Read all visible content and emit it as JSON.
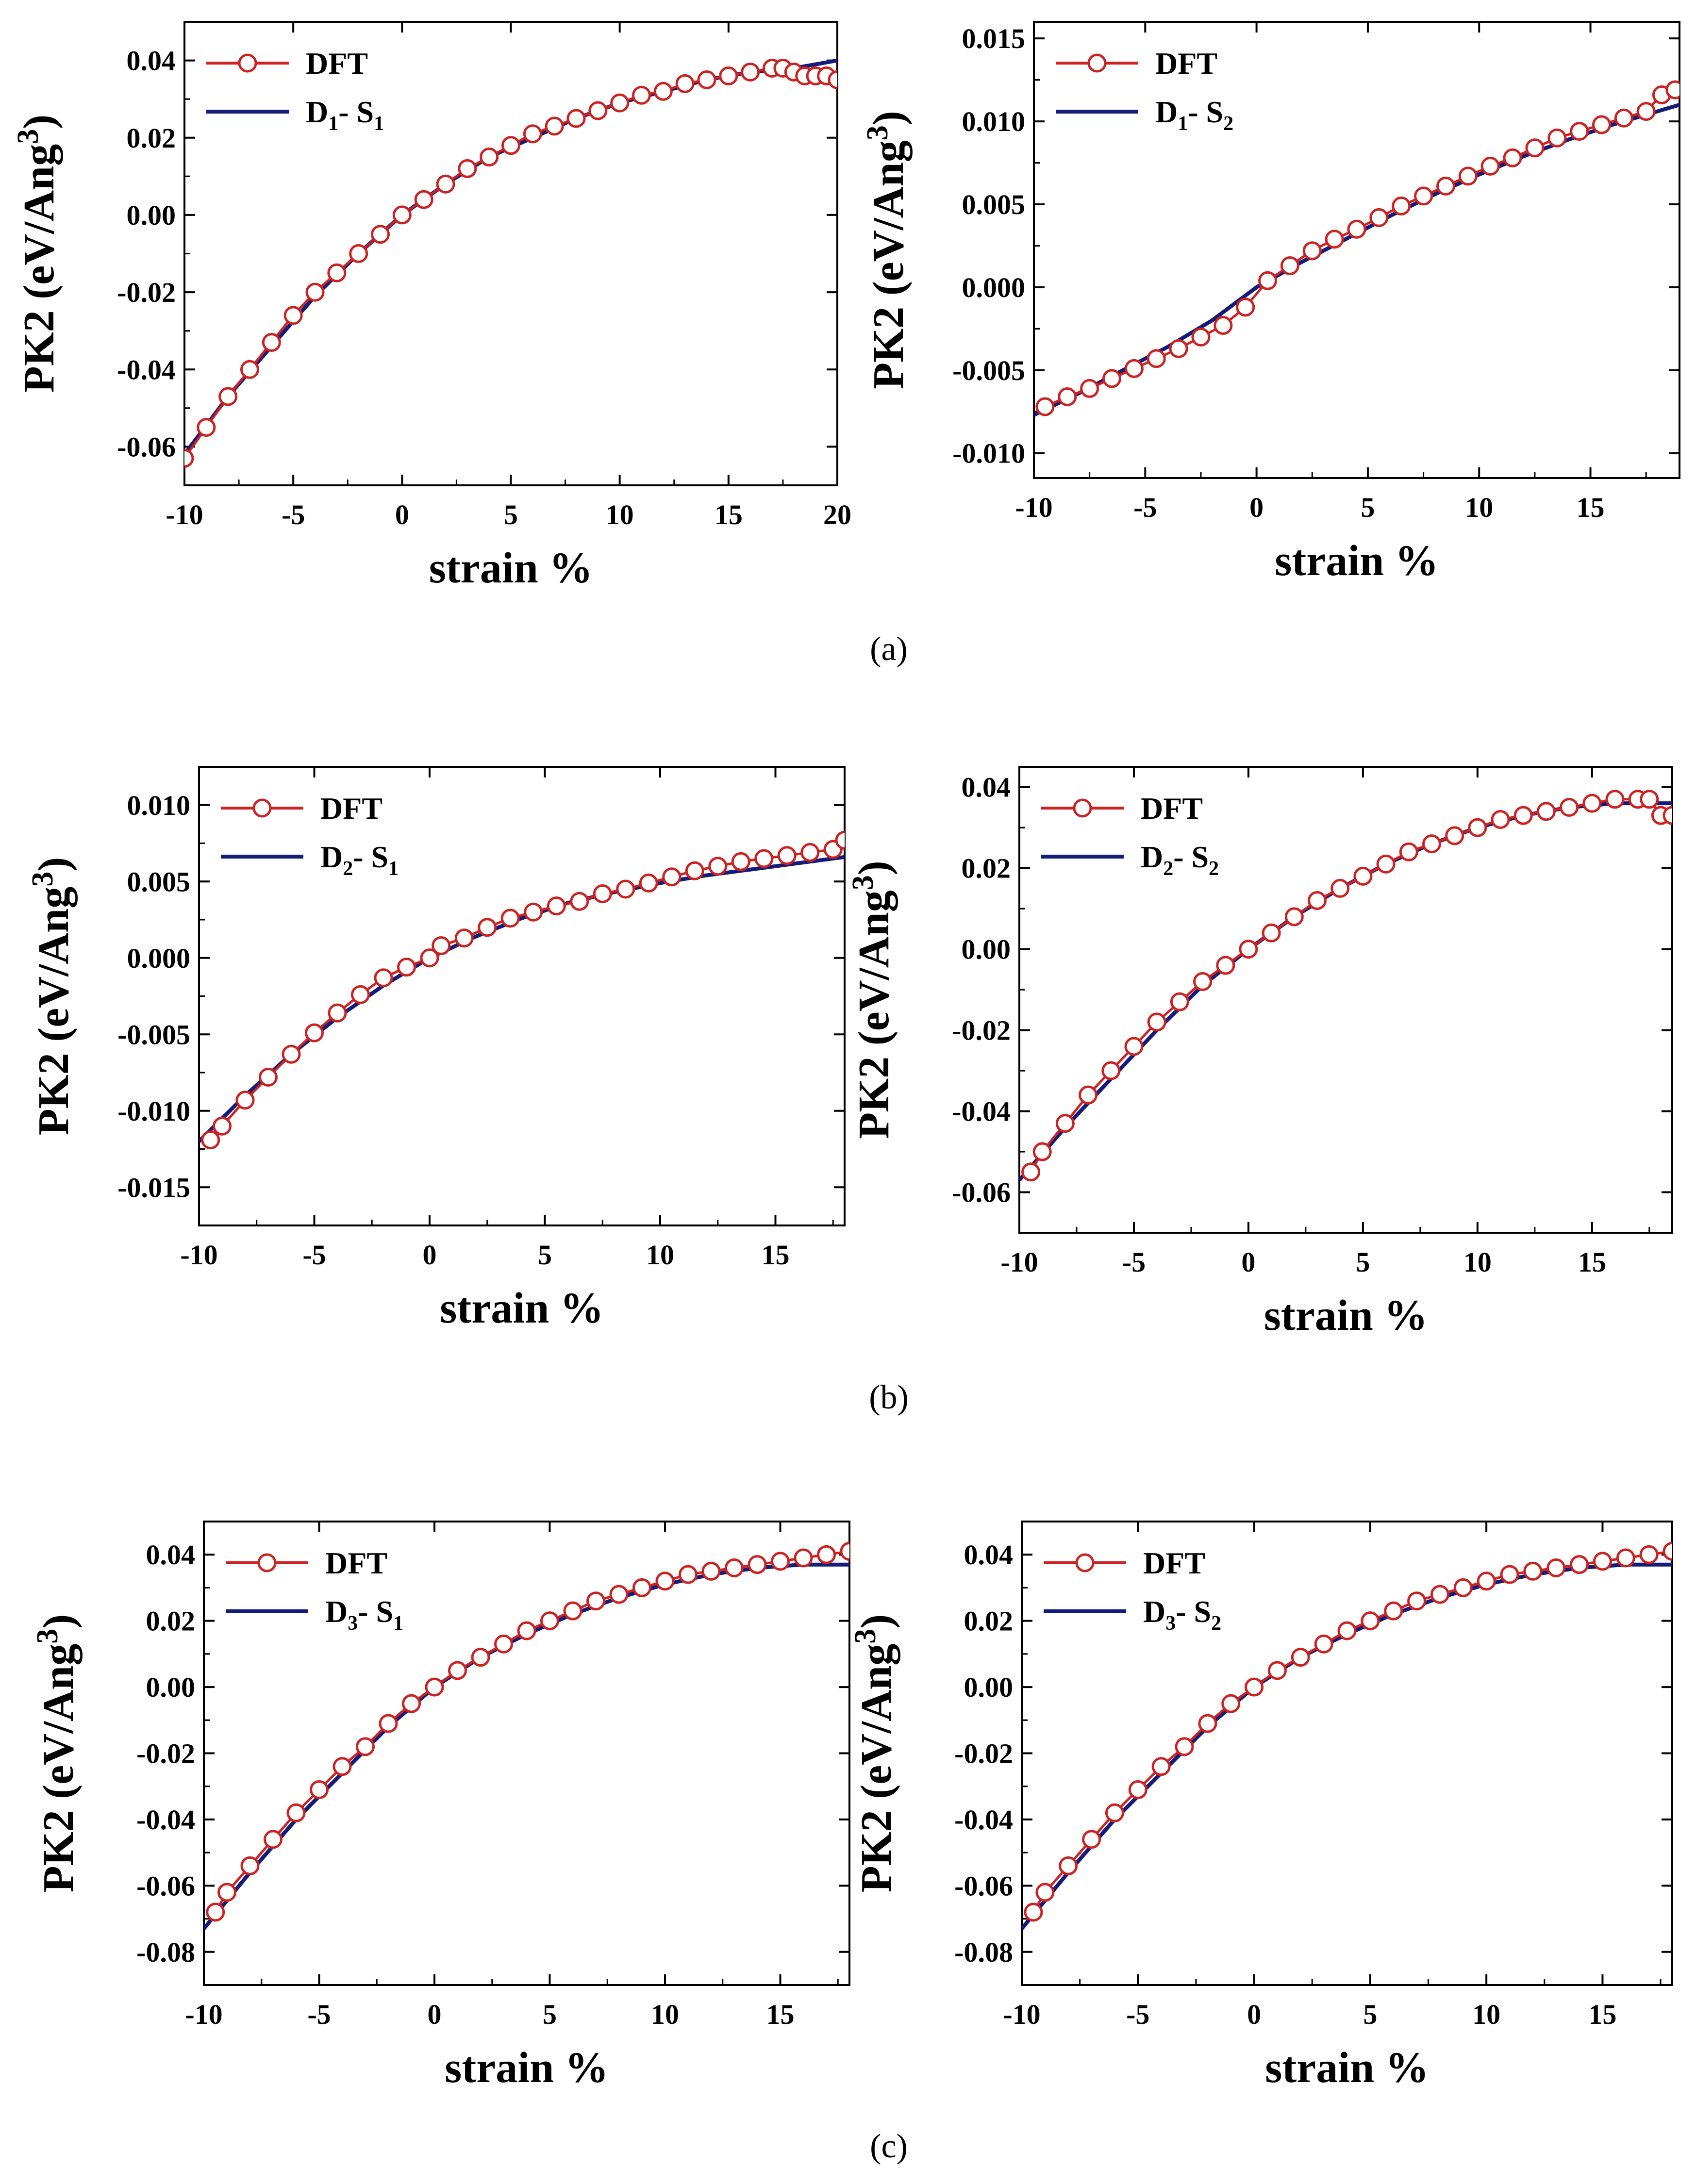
{
  "figure": {
    "captions": [
      "(a)",
      "(b)",
      "(c)"
    ]
  },
  "chart_data": [
    {
      "id": "a1",
      "type": "line",
      "row": 0,
      "col": 0,
      "xlabel": "strain %",
      "ylabel": "PK2 (eV/Ang3)",
      "xlim": [
        -10,
        20
      ],
      "ylim": [
        -0.07,
        0.05
      ],
      "xticks": [
        -10,
        -5,
        0,
        5,
        10,
        15,
        20
      ],
      "xtick_labels": [
        "-10",
        "-5",
        "0",
        "5",
        "10",
        "15",
        "20"
      ],
      "yticks": [
        -0.06,
        -0.04,
        -0.02,
        0,
        0.02,
        0.04
      ],
      "ytick_labels": [
        "-0.06",
        "-0.04",
        "-0.02",
        "0.00",
        "0.02",
        "0.04"
      ],
      "legend": [
        {
          "name": "DFT",
          "sub_text": ""
        },
        {
          "name": "D",
          "sub_main": "1",
          "mid": "- S",
          "sub_end": "1"
        }
      ],
      "series": [
        {
          "name": "DFT",
          "style": "circles",
          "color": "#cc2222",
          "x": [
            -10,
            -9,
            -8,
            -7,
            -6,
            -5,
            -4,
            -3,
            -2,
            -1,
            0,
            1,
            2,
            3,
            4,
            5,
            6,
            7,
            8,
            9,
            10,
            11,
            12,
            13,
            14,
            15,
            16,
            17,
            17.5,
            18,
            18.5,
            19,
            19.5,
            20
          ],
          "y": [
            -0.063,
            -0.055,
            -0.047,
            -0.04,
            -0.033,
            -0.026,
            -0.02,
            -0.015,
            -0.01,
            -0.005,
            0.0,
            0.004,
            0.008,
            0.012,
            0.015,
            0.018,
            0.021,
            0.023,
            0.025,
            0.027,
            0.029,
            0.031,
            0.032,
            0.034,
            0.035,
            0.036,
            0.037,
            0.038,
            0.038,
            0.037,
            0.036,
            0.036,
            0.036,
            0.035
          ]
        },
        {
          "name": "D1- S1",
          "style": "line",
          "color": "#141b78",
          "x": [
            -10,
            -8,
            -6,
            -4,
            -2,
            0,
            2,
            4,
            6,
            8,
            10,
            12,
            14,
            16,
            18,
            20
          ],
          "y": [
            -0.062,
            -0.047,
            -0.034,
            -0.021,
            -0.01,
            0.0,
            0.008,
            0.015,
            0.02,
            0.025,
            0.029,
            0.032,
            0.035,
            0.037,
            0.038,
            0.04
          ]
        }
      ]
    },
    {
      "id": "a2",
      "type": "line",
      "row": 0,
      "col": 1,
      "xlabel": "strain %",
      "ylabel": "PK2 (eV/Ang3)",
      "xlim": [
        -10,
        19
      ],
      "ylim": [
        -0.0115,
        0.016
      ],
      "xticks": [
        -10,
        -5,
        0,
        5,
        10,
        15
      ],
      "xtick_labels": [
        "-10",
        "-5",
        "0",
        "5",
        "10",
        "15"
      ],
      "yticks": [
        -0.01,
        -0.005,
        0,
        0.005,
        0.01,
        0.015
      ],
      "ytick_labels": [
        "-0.010",
        "-0.005",
        "0.000",
        "0.005",
        "0.010",
        "0.015"
      ],
      "legend": [
        {
          "name": "DFT",
          "sub_text": ""
        },
        {
          "name": "D",
          "sub_main": "1",
          "mid": "- S",
          "sub_end": "2"
        }
      ],
      "series": [
        {
          "name": "DFT",
          "style": "circles",
          "color": "#cc2222",
          "x": [
            -9.5,
            -8.5,
            -7.5,
            -6.5,
            -5.5,
            -4.5,
            -3.5,
            -2.5,
            -1.5,
            -0.5,
            0.5,
            1.5,
            2.5,
            3.5,
            4.5,
            5.5,
            6.5,
            7.5,
            8.5,
            9.5,
            10.5,
            11.5,
            12.5,
            13.5,
            14.5,
            15.5,
            16.5,
            17.5,
            18.2,
            18.8
          ],
          "y": [
            -0.0072,
            -0.0066,
            -0.0061,
            -0.0055,
            -0.0049,
            -0.0043,
            -0.0037,
            -0.003,
            -0.0023,
            -0.0012,
            0.0004,
            0.0013,
            0.0022,
            0.0029,
            0.0035,
            0.0042,
            0.0049,
            0.0055,
            0.0061,
            0.0067,
            0.0073,
            0.0078,
            0.0084,
            0.009,
            0.0094,
            0.0098,
            0.0102,
            0.0106,
            0.0116,
            0.0119
          ]
        },
        {
          "name": "D1- S2",
          "style": "line",
          "color": "#141b78",
          "x": [
            -10,
            -8,
            -6,
            -4,
            -2,
            0,
            2,
            4,
            6,
            8,
            10,
            12,
            14,
            16,
            18,
            19
          ],
          "y": [
            -0.0077,
            -0.0064,
            -0.005,
            -0.0036,
            -0.002,
            0.0,
            0.0015,
            0.0029,
            0.0043,
            0.0056,
            0.0068,
            0.0079,
            0.0089,
            0.0098,
            0.0106,
            0.011
          ]
        }
      ]
    },
    {
      "id": "b1",
      "type": "line",
      "row": 1,
      "col": 0,
      "xlabel": "strain %",
      "ylabel": "PK2 (eV/Ang3)",
      "xlim": [
        -10,
        18
      ],
      "ylim": [
        -0.0175,
        0.0125
      ],
      "xticks": [
        -10,
        -5,
        0,
        5,
        10,
        15
      ],
      "xtick_labels": [
        "-10",
        "-5",
        "0",
        "5",
        "10",
        "15"
      ],
      "yticks": [
        -0.015,
        -0.01,
        -0.005,
        0,
        0.005,
        0.01
      ],
      "ytick_labels": [
        "-0.015",
        "-0.010",
        "-0.005",
        "0.000",
        "0.005",
        "0.010"
      ],
      "legend": [
        {
          "name": "DFT",
          "sub_text": ""
        },
        {
          "name": "D",
          "sub_main": "2",
          "mid": "- S",
          "sub_end": "1"
        }
      ],
      "series": [
        {
          "name": "DFT",
          "style": "circles",
          "color": "#cc2222",
          "x": [
            -9.5,
            -9,
            -8,
            -7,
            -6,
            -5,
            -4,
            -3,
            -2,
            -1,
            0,
            0.5,
            1.5,
            2.5,
            3.5,
            4.5,
            5.5,
            6.5,
            7.5,
            8.5,
            9.5,
            10.5,
            11.5,
            12.5,
            13.5,
            14.5,
            15.5,
            16.5,
            17.5,
            18
          ],
          "y": [
            -0.0119,
            -0.011,
            -0.0093,
            -0.0078,
            -0.0063,
            -0.0049,
            -0.0036,
            -0.0024,
            -0.0013,
            -0.0006,
            0.0,
            0.0008,
            0.0013,
            0.002,
            0.0026,
            0.003,
            0.0034,
            0.0037,
            0.0042,
            0.0045,
            0.0049,
            0.0053,
            0.0057,
            0.006,
            0.0063,
            0.0065,
            0.0067,
            0.0069,
            0.0071,
            0.0077
          ]
        },
        {
          "name": "D2- S1",
          "style": "line",
          "color": "#141b78",
          "x": [
            -10,
            -8,
            -6,
            -4,
            -2,
            0,
            2,
            4,
            6,
            8,
            10,
            12,
            14,
            16,
            18
          ],
          "y": [
            -0.012,
            -0.009,
            -0.0063,
            -0.0039,
            -0.0018,
            0.0,
            0.0014,
            0.0026,
            0.0036,
            0.0043,
            0.0049,
            0.0054,
            0.0058,
            0.0062,
            0.0066
          ]
        }
      ]
    },
    {
      "id": "b2",
      "type": "line",
      "row": 1,
      "col": 1,
      "xlabel": "strain %",
      "ylabel": "PK2 (eV/Ang3)",
      "xlim": [
        -10,
        18.5
      ],
      "ylim": [
        -0.07,
        0.045
      ],
      "xticks": [
        -10,
        -5,
        0,
        5,
        10,
        15
      ],
      "xtick_labels": [
        "-10",
        "-5",
        "0",
        "5",
        "10",
        "15"
      ],
      "yticks": [
        -0.06,
        -0.04,
        -0.02,
        0,
        0.02,
        0.04
      ],
      "ytick_labels": [
        "-0.06",
        "-0.04",
        "-0.02",
        "0.00",
        "0.02",
        "0.04"
      ],
      "legend": [
        {
          "name": "DFT",
          "sub_text": ""
        },
        {
          "name": "D",
          "sub_main": "2",
          "mid": "- S",
          "sub_end": "2"
        }
      ],
      "series": [
        {
          "name": "DFT",
          "style": "circles",
          "color": "#cc2222",
          "x": [
            -9.5,
            -9,
            -8,
            -7,
            -6,
            -5,
            -4,
            -3,
            -2,
            -1,
            0,
            1,
            2,
            3,
            4,
            5,
            6,
            7,
            8,
            9,
            10,
            11,
            12,
            13,
            14,
            15,
            16,
            17,
            17.5,
            18,
            18.5
          ],
          "y": [
            -0.055,
            -0.05,
            -0.043,
            -0.036,
            -0.03,
            -0.024,
            -0.018,
            -0.013,
            -0.008,
            -0.004,
            0.0,
            0.004,
            0.008,
            0.012,
            0.015,
            0.018,
            0.021,
            0.024,
            0.026,
            0.028,
            0.03,
            0.032,
            0.033,
            0.034,
            0.035,
            0.036,
            0.037,
            0.037,
            0.037,
            0.033,
            0.033
          ]
        },
        {
          "name": "D2- S2",
          "style": "line",
          "color": "#141b78",
          "x": [
            -10,
            -8,
            -6,
            -4,
            -2,
            0,
            2,
            4,
            6,
            8,
            10,
            12,
            14,
            16,
            18,
            18.5
          ],
          "y": [
            -0.057,
            -0.044,
            -0.032,
            -0.02,
            -0.009,
            0.0,
            0.008,
            0.015,
            0.021,
            0.026,
            0.03,
            0.033,
            0.035,
            0.036,
            0.036,
            0.036
          ]
        }
      ]
    },
    {
      "id": "c1",
      "type": "line",
      "row": 2,
      "col": 0,
      "xlabel": "strain %",
      "ylabel": "PK2 (eV/Ang3)",
      "xlim": [
        -10,
        18
      ],
      "ylim": [
        -0.09,
        0.05
      ],
      "xticks": [
        -10,
        -5,
        0,
        5,
        10,
        15
      ],
      "xtick_labels": [
        "-10",
        "-5",
        "0",
        "5",
        "10",
        "15"
      ],
      "yticks": [
        -0.08,
        -0.06,
        -0.04,
        -0.02,
        0,
        0.02,
        0.04
      ],
      "ytick_labels": [
        "-0.08",
        "-0.06",
        "-0.04",
        "-0.02",
        "0.00",
        "0.02",
        "0.04"
      ],
      "legend": [
        {
          "name": "DFT",
          "sub_text": ""
        },
        {
          "name": "D",
          "sub_main": "3",
          "mid": "- S",
          "sub_end": "1"
        }
      ],
      "series": [
        {
          "name": "DFT",
          "style": "circles",
          "color": "#cc2222",
          "x": [
            -9.5,
            -9,
            -8,
            -7,
            -6,
            -5,
            -4,
            -3,
            -2,
            -1,
            0,
            1,
            2,
            3,
            4,
            5,
            6,
            7,
            8,
            9,
            10,
            11,
            12,
            13,
            14,
            15,
            16,
            17,
            18
          ],
          "y": [
            -0.068,
            -0.062,
            -0.054,
            -0.046,
            -0.038,
            -0.031,
            -0.024,
            -0.018,
            -0.011,
            -0.005,
            0.0,
            0.005,
            0.009,
            0.013,
            0.017,
            0.02,
            0.023,
            0.026,
            0.028,
            0.03,
            0.032,
            0.034,
            0.035,
            0.036,
            0.037,
            0.038,
            0.039,
            0.04,
            0.041
          ]
        },
        {
          "name": "D3- S1",
          "style": "line",
          "color": "#141b78",
          "x": [
            -10,
            -8,
            -6,
            -4,
            -2,
            0,
            2,
            4,
            6,
            8,
            10,
            12,
            14,
            16,
            18
          ],
          "y": [
            -0.073,
            -0.056,
            -0.04,
            -0.026,
            -0.012,
            0.0,
            0.009,
            0.016,
            0.022,
            0.027,
            0.031,
            0.034,
            0.036,
            0.037,
            0.037
          ]
        }
      ]
    },
    {
      "id": "c2",
      "type": "line",
      "row": 2,
      "col": 1,
      "xlabel": "strain %",
      "ylabel": "PK2 (eV/Ang3)",
      "xlim": [
        -10,
        18
      ],
      "ylim": [
        -0.09,
        0.05
      ],
      "xticks": [
        -10,
        -5,
        0,
        5,
        10,
        15
      ],
      "xtick_labels": [
        "-10",
        "-5",
        "0",
        "5",
        "10",
        "15"
      ],
      "yticks": [
        -0.08,
        -0.06,
        -0.04,
        -0.02,
        0,
        0.02,
        0.04
      ],
      "ytick_labels": [
        "-0.08",
        "-0.06",
        "-0.04",
        "-0.02",
        "0.00",
        "0.02",
        "0.04"
      ],
      "legend": [
        {
          "name": "DFT",
          "sub_text": ""
        },
        {
          "name": "D",
          "sub_main": "3",
          "mid": "- S",
          "sub_end": "2"
        }
      ],
      "series": [
        {
          "name": "DFT",
          "style": "circles",
          "color": "#cc2222",
          "x": [
            -9.5,
            -9,
            -8,
            -7,
            -6,
            -5,
            -4,
            -3,
            -2,
            -1,
            0,
            1,
            2,
            3,
            4,
            5,
            6,
            7,
            8,
            9,
            10,
            11,
            12,
            13,
            14,
            15,
            16,
            17,
            18
          ],
          "y": [
            -0.068,
            -0.062,
            -0.054,
            -0.046,
            -0.038,
            -0.031,
            -0.024,
            -0.018,
            -0.011,
            -0.005,
            0.0,
            0.005,
            0.009,
            0.013,
            0.017,
            0.02,
            0.023,
            0.026,
            0.028,
            0.03,
            0.032,
            0.034,
            0.035,
            0.036,
            0.037,
            0.038,
            0.039,
            0.04,
            0.041
          ]
        },
        {
          "name": "D3- S2",
          "style": "line",
          "color": "#141b78",
          "x": [
            -10,
            -8,
            -6,
            -4,
            -2,
            0,
            2,
            4,
            6,
            8,
            10,
            12,
            14,
            16,
            18
          ],
          "y": [
            -0.073,
            -0.056,
            -0.04,
            -0.026,
            -0.012,
            0.0,
            0.009,
            0.016,
            0.022,
            0.027,
            0.031,
            0.034,
            0.036,
            0.037,
            0.037
          ]
        }
      ]
    }
  ]
}
